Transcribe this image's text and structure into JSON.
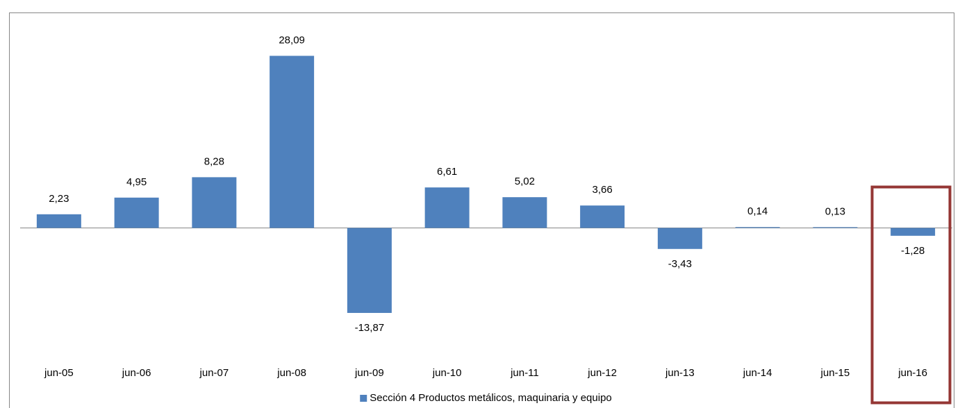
{
  "chart_data": {
    "type": "bar",
    "categories": [
      "jun-05",
      "jun-06",
      "jun-07",
      "jun-08",
      "jun-09",
      "jun-10",
      "jun-11",
      "jun-12",
      "jun-13",
      "jun-14",
      "jun-15",
      "jun-16"
    ],
    "series": [
      {
        "name": "Sección 4 Productos metálicos, maquinaria y equipo",
        "color": "#4f81bd",
        "values": [
          2.23,
          4.95,
          8.28,
          28.09,
          -13.87,
          6.61,
          5.02,
          3.66,
          -3.43,
          0.14,
          0.13,
          -1.28
        ],
        "value_labels": [
          "2,23",
          "4,95",
          "8,28",
          "28,09",
          "-13,87",
          "6,61",
          "5,02",
          "3,66",
          "-3,43",
          "0,14",
          "0,13",
          "-1,28"
        ]
      }
    ],
    "legend": "bottom"
  }
}
